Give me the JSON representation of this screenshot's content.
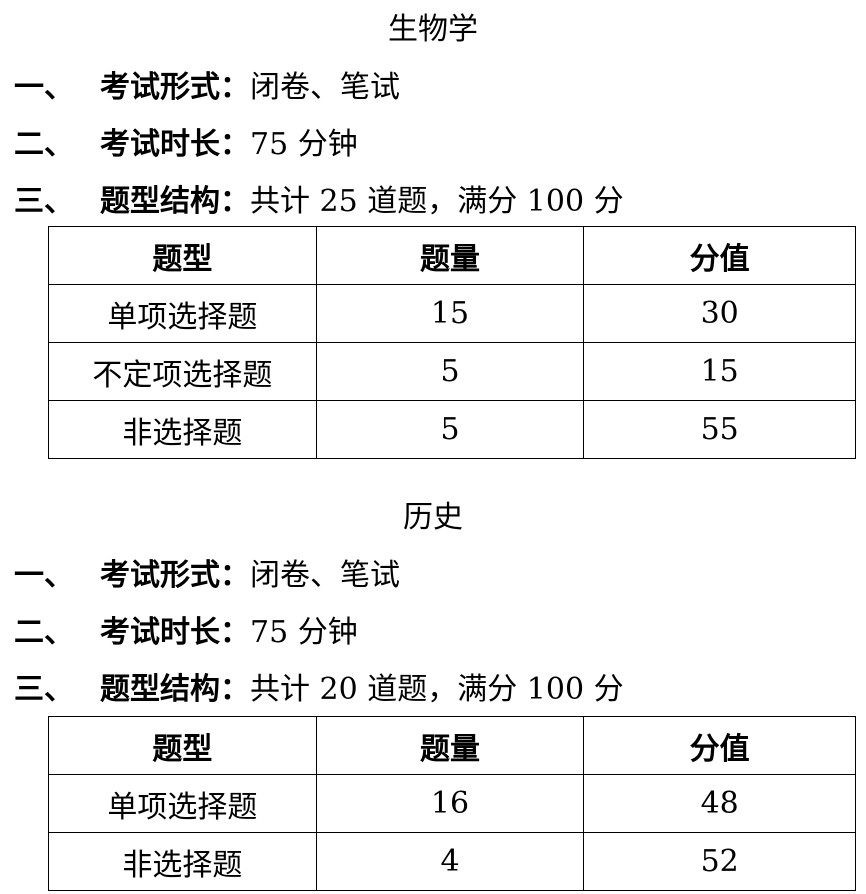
{
  "sections": [
    {
      "title": "生物学",
      "lines": [
        {
          "num": "一、",
          "label": "考试形式：",
          "value": "闭卷、笔试"
        },
        {
          "num": "二、",
          "label": "考试时长：",
          "value": "75 分钟"
        },
        {
          "num": "三、",
          "label": "题型结构：",
          "value": "共计 25 道题，满分 100 分"
        }
      ],
      "table": {
        "headers": [
          "题型",
          "题量",
          "分值"
        ],
        "rows": [
          [
            "单项选择题",
            "15",
            "30"
          ],
          [
            "不定项选择题",
            "5",
            "15"
          ],
          [
            "非选择题",
            "5",
            "55"
          ]
        ]
      }
    },
    {
      "title": "历史",
      "lines": [
        {
          "num": "一、",
          "label": "考试形式：",
          "value": "闭卷、笔试"
        },
        {
          "num": "二、",
          "label": "考试时长：",
          "value": "75 分钟"
        },
        {
          "num": "三、",
          "label": "题型结构：",
          "value": "共计 20 道题，满分 100 分"
        }
      ],
      "table": {
        "headers": [
          "题型",
          "题量",
          "分值"
        ],
        "rows": [
          [
            "单项选择题",
            "16",
            "48"
          ],
          [
            "非选择题",
            "4",
            "52"
          ]
        ]
      }
    }
  ]
}
